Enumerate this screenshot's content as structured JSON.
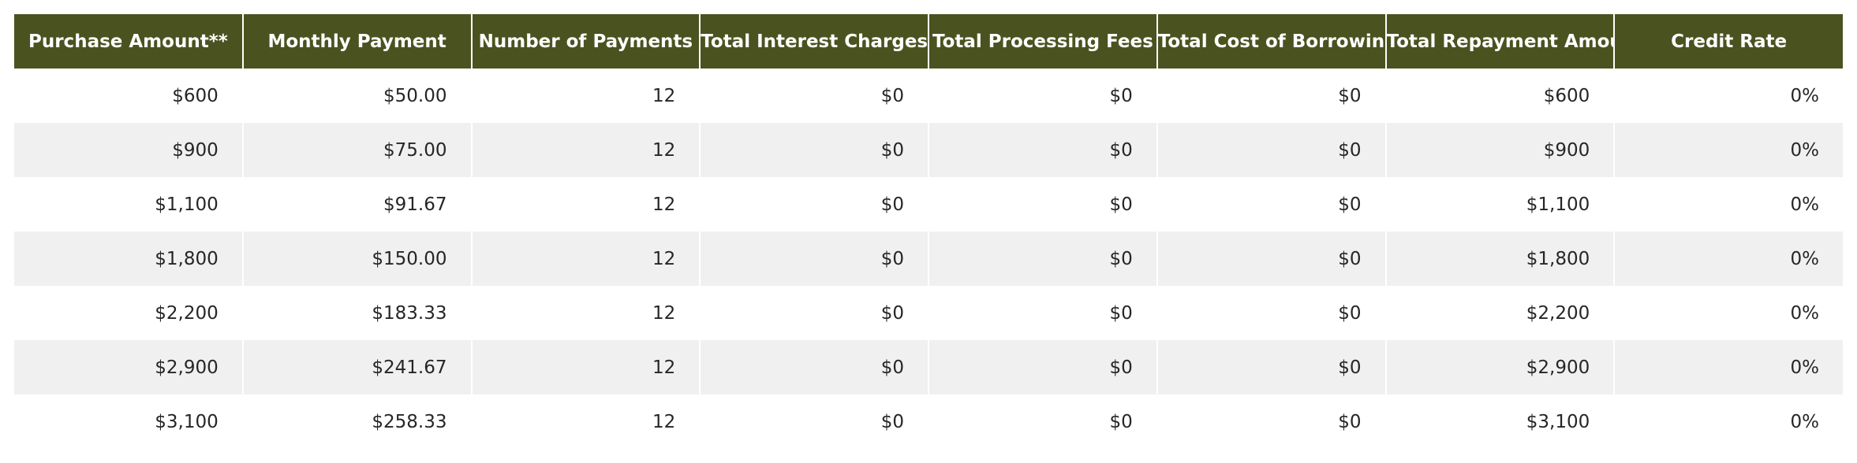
{
  "table": {
    "headers": [
      "Purchase Amount**",
      "Monthly Payment",
      "Number of Payments",
      "Total Interest Charges",
      "Total Processing Fees",
      "Total Cost of Borrowing",
      "Total Repayment Amount",
      "Credit Rate"
    ],
    "rows": [
      [
        "$600",
        "$50.00",
        "12",
        "$0",
        "$0",
        "$0",
        "$600",
        "0%"
      ],
      [
        "$900",
        "$75.00",
        "12",
        "$0",
        "$0",
        "$0",
        "$900",
        "0%"
      ],
      [
        "$1,100",
        "$91.67",
        "12",
        "$0",
        "$0",
        "$0",
        "$1,100",
        "0%"
      ],
      [
        "$1,800",
        "$150.00",
        "12",
        "$0",
        "$0",
        "$0",
        "$1,800",
        "0%"
      ],
      [
        "$2,200",
        "$183.33",
        "12",
        "$0",
        "$0",
        "$0",
        "$2,200",
        "0%"
      ],
      [
        "$2,900",
        "$241.67",
        "12",
        "$0",
        "$0",
        "$0",
        "$2,900",
        "0%"
      ],
      [
        "$3,100",
        "$258.33",
        "12",
        "$0",
        "$0",
        "$0",
        "$3,100",
        "0%"
      ]
    ]
  },
  "colors": {
    "header_background": "#4a5320",
    "header_text": "#ffffff",
    "row_stripe": "#f0f0f0"
  }
}
